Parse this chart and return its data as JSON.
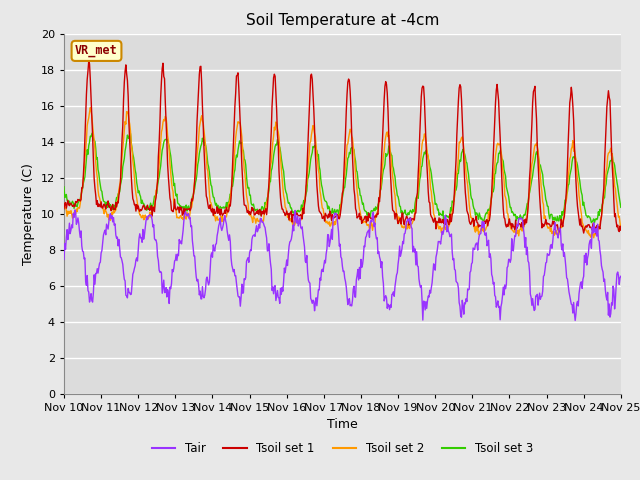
{
  "title": "Soil Temperature at -4cm",
  "xlabel": "Time",
  "ylabel": "Temperature (C)",
  "ylim": [
    0,
    20
  ],
  "xlim": [
    0,
    360
  ],
  "fig_bg_color": "#e8e8e8",
  "plot_bg_color": "#dcdcdc",
  "grid_color": "#ffffff",
  "colors": {
    "Tair": "#9933ff",
    "Tsoil1": "#cc0000",
    "Tsoil2": "#ff9900",
    "Tsoil3": "#33cc00"
  },
  "legend_labels": [
    "Tair",
    "Tsoil set 1",
    "Tsoil set 2",
    "Tsoil set 3"
  ],
  "station_label": "VR_met",
  "x_tick_labels": [
    "Nov 10",
    "Nov 11",
    "Nov 12",
    "Nov 13",
    "Nov 14",
    "Nov 15",
    "Nov 16",
    "Nov 17",
    "Nov 18",
    "Nov 19",
    "Nov 20",
    "Nov 21",
    "Nov 22",
    "Nov 23",
    "Nov 24",
    "Nov 25"
  ],
  "x_tick_positions": [
    0,
    24,
    48,
    72,
    96,
    120,
    144,
    168,
    192,
    216,
    240,
    264,
    288,
    312,
    336,
    360
  ]
}
